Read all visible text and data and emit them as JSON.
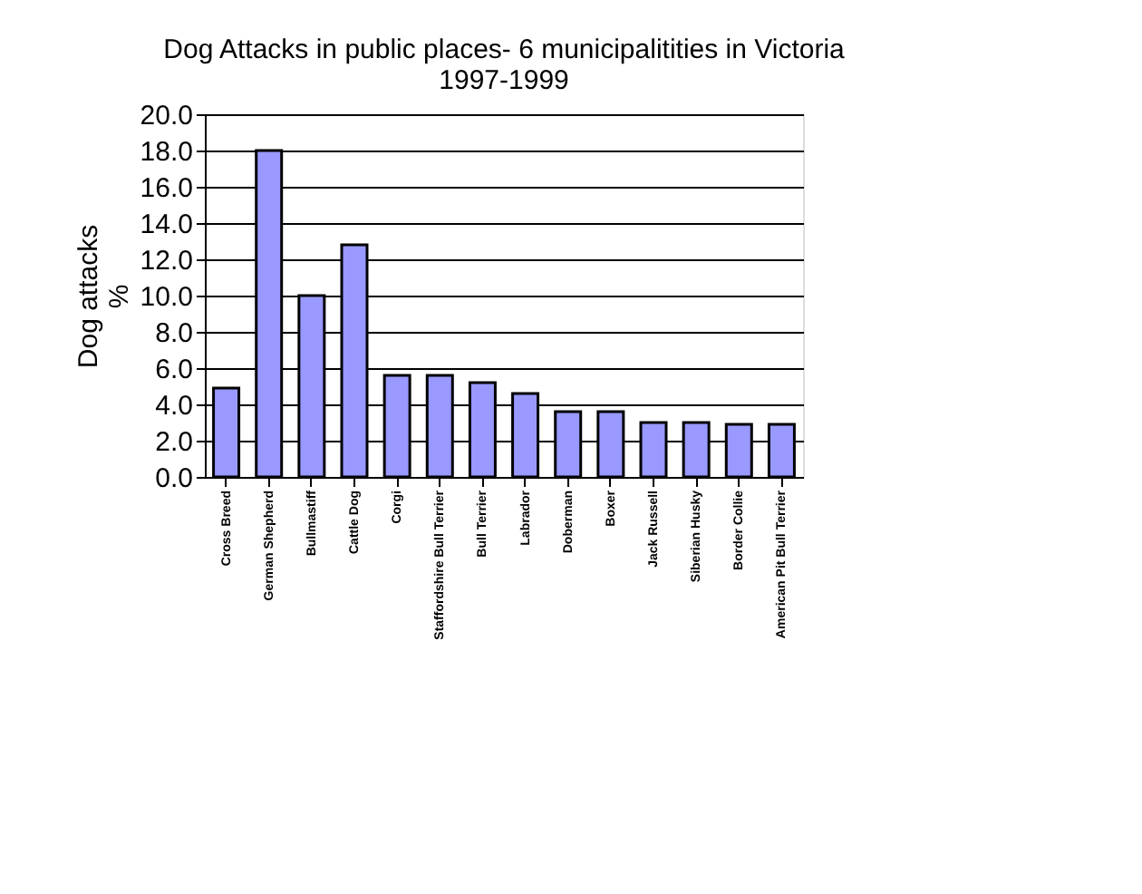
{
  "chart_data": {
    "type": "bar",
    "title": [
      "Dog Attacks in public places- 6 municipalitities in Victoria",
      "1997-1999"
    ],
    "ylabel": [
      "Dog attacks",
      "%"
    ],
    "categories": [
      "Cross Breed",
      "German Shepherd",
      "Bullmastiff",
      "Cattle Dog",
      "Corgi",
      "Staffordshire Bull Terrier",
      "Bull Terrier",
      "Labrador",
      "Doberman",
      "Boxer",
      "Jack Russell",
      "Siberian Husky",
      "Border Collie",
      "American Pit Bull Terrier"
    ],
    "values": [
      4.9,
      18.0,
      10.0,
      12.8,
      5.6,
      5.6,
      5.2,
      4.6,
      3.6,
      3.6,
      3.0,
      3.0,
      2.9,
      2.9
    ],
    "color": "#9999ff",
    "ylim": [
      0,
      20
    ],
    "yticks": [
      {
        "value": 0,
        "label": "0.0"
      },
      {
        "value": 2,
        "label": "2.0"
      },
      {
        "value": 4,
        "label": "4.0"
      },
      {
        "value": 6,
        "label": "6.0"
      },
      {
        "value": 8,
        "label": "8.0"
      },
      {
        "value": 10,
        "label": "10.0"
      },
      {
        "value": 12,
        "label": "12.0"
      },
      {
        "value": 14,
        "label": "14.0"
      },
      {
        "value": 16,
        "label": "16.0"
      },
      {
        "value": 18,
        "label": "18.0"
      },
      {
        "value": 20,
        "label": "20.0"
      }
    ],
    "grid": "y"
  }
}
